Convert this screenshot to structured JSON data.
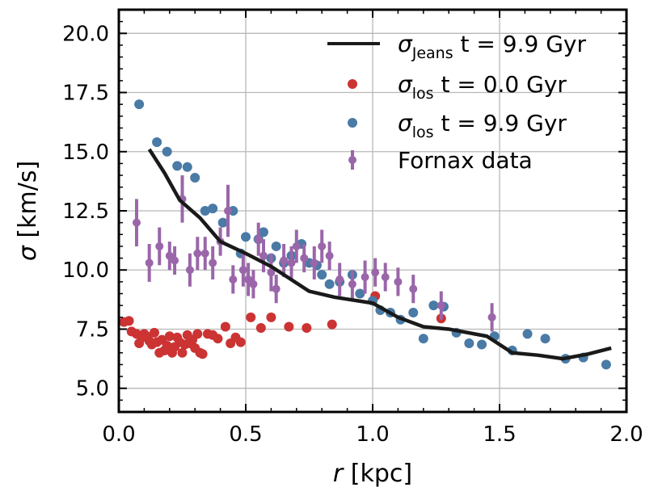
{
  "chart_data": {
    "type": "scatter",
    "xlabel_var": "r",
    "xlabel_unit": "[kpc]",
    "ylabel_var": "σ",
    "ylabel_unit": "[km/s]",
    "xlim": [
      0.0,
      2.0
    ],
    "ylim": [
      4.0,
      21.0
    ],
    "x_ticks": [
      0.0,
      0.5,
      1.0,
      1.5,
      2.0
    ],
    "x_tick_labels": [
      "0.0",
      "0.5",
      "1.0",
      "1.5",
      "2.0"
    ],
    "y_ticks": [
      5.0,
      7.5,
      10.0,
      12.5,
      15.0,
      17.5,
      20.0
    ],
    "y_tick_labels": [
      "5.0",
      "7.5",
      "10.0",
      "12.5",
      "15.0",
      "17.5",
      "20.0"
    ],
    "grid": true,
    "legend_position": "top-right",
    "colors": {
      "line": "#1a1a1a",
      "red": "#cc3333",
      "blue": "#4a7aa6",
      "purple": "#9a66a9"
    },
    "series": [
      {
        "name": "σ_Jeans t = 9.9 Gyr",
        "legend_sym": "σ",
        "legend_sub": "Jeans",
        "legend_rest": " t = 9.9 Gyr",
        "kind": "line",
        "color": "#1a1a1a",
        "x": [
          0.12,
          0.18,
          0.24,
          0.32,
          0.4,
          0.5,
          0.6,
          0.75,
          0.85,
          1.0,
          1.1,
          1.2,
          1.3,
          1.45,
          1.55,
          1.65,
          1.75,
          1.85,
          1.94
        ],
        "y": [
          15.1,
          14.1,
          12.95,
          12.2,
          11.2,
          10.7,
          10.15,
          9.1,
          8.85,
          8.6,
          8.0,
          7.6,
          7.5,
          7.2,
          6.5,
          6.4,
          6.25,
          6.45,
          6.7
        ]
      },
      {
        "name": "σ_los t = 0.0 Gyr",
        "legend_sym": "σ",
        "legend_sub": "los",
        "legend_rest": " t = 0.0 Gyr",
        "kind": "scatter",
        "color": "#cc3333",
        "x": [
          0.02,
          0.04,
          0.05,
          0.07,
          0.08,
          0.09,
          0.1,
          0.11,
          0.12,
          0.13,
          0.14,
          0.15,
          0.16,
          0.17,
          0.18,
          0.19,
          0.2,
          0.21,
          0.22,
          0.23,
          0.24,
          0.25,
          0.26,
          0.27,
          0.28,
          0.29,
          0.3,
          0.31,
          0.32,
          0.33,
          0.35,
          0.37,
          0.39,
          0.42,
          0.44,
          0.46,
          0.48,
          0.52,
          0.56,
          0.6,
          0.67,
          0.74,
          0.84,
          1.01,
          1.27
        ],
        "y": [
          7.8,
          7.85,
          7.4,
          7.3,
          6.9,
          7.15,
          7.3,
          7.2,
          7.0,
          6.85,
          7.35,
          6.95,
          6.5,
          7.05,
          6.6,
          6.8,
          7.2,
          6.5,
          6.75,
          7.15,
          6.95,
          6.5,
          6.85,
          7.25,
          6.9,
          7.05,
          6.7,
          7.3,
          6.5,
          6.45,
          7.3,
          7.25,
          7.1,
          7.6,
          6.9,
          7.15,
          6.95,
          8.0,
          7.55,
          8.0,
          7.6,
          7.55,
          7.7,
          8.9,
          7.95
        ]
      },
      {
        "name": "σ_los t = 9.9 Gyr",
        "legend_sym": "σ",
        "legend_sub": "los",
        "legend_rest": " t = 9.9 Gyr",
        "kind": "scatter",
        "color": "#4a7aa6",
        "x": [
          0.08,
          0.15,
          0.19,
          0.23,
          0.27,
          0.3,
          0.34,
          0.37,
          0.41,
          0.45,
          0.48,
          0.5,
          0.55,
          0.57,
          0.6,
          0.62,
          0.65,
          0.68,
          0.72,
          0.75,
          0.78,
          0.8,
          0.83,
          0.87,
          0.92,
          0.95,
          1.0,
          1.03,
          1.07,
          1.11,
          1.16,
          1.2,
          1.24,
          1.28,
          1.33,
          1.38,
          1.43,
          1.48,
          1.55,
          1.61,
          1.68,
          1.76,
          1.83,
          1.92
        ],
        "y": [
          17.0,
          15.4,
          15.0,
          14.4,
          14.35,
          13.9,
          12.5,
          12.6,
          12.0,
          12.5,
          10.7,
          11.4,
          11.3,
          11.6,
          10.5,
          11.0,
          10.3,
          10.6,
          11.1,
          10.3,
          10.2,
          9.8,
          9.4,
          9.5,
          9.8,
          9.0,
          8.7,
          8.3,
          8.2,
          7.9,
          8.2,
          7.1,
          8.5,
          8.45,
          7.35,
          6.9,
          6.85,
          7.2,
          6.6,
          7.3,
          7.1,
          6.25,
          6.3,
          6.0
        ]
      },
      {
        "name": "Fornax data",
        "legend_label": "Fornax data",
        "kind": "errorbar",
        "color": "#9a66a9",
        "x": [
          0.07,
          0.12,
          0.16,
          0.2,
          0.22,
          0.25,
          0.28,
          0.31,
          0.34,
          0.37,
          0.4,
          0.43,
          0.45,
          0.49,
          0.51,
          0.53,
          0.55,
          0.57,
          0.6,
          0.62,
          0.65,
          0.68,
          0.7,
          0.73,
          0.77,
          0.8,
          0.83,
          0.87,
          0.92,
          0.97,
          1.01,
          1.05,
          1.1,
          1.16,
          1.27,
          1.47
        ],
        "y": [
          12.0,
          10.3,
          11.0,
          10.6,
          10.4,
          13.0,
          10.0,
          10.7,
          10.7,
          10.3,
          11.2,
          12.5,
          9.6,
          10.0,
          9.6,
          9.4,
          11.3,
          10.6,
          9.9,
          9.2,
          10.4,
          10.3,
          11.0,
          10.5,
          10.3,
          11.0,
          10.6,
          9.6,
          9.4,
          9.7,
          9.9,
          9.7,
          9.5,
          9.2,
          8.5,
          8.0
        ],
        "err": [
          1.0,
          0.8,
          0.8,
          0.6,
          0.6,
          1.0,
          0.7,
          0.7,
          0.7,
          0.7,
          0.6,
          1.1,
          0.6,
          0.7,
          0.7,
          0.6,
          0.7,
          0.7,
          0.8,
          0.6,
          0.7,
          0.7,
          0.7,
          0.6,
          0.7,
          0.7,
          0.6,
          0.7,
          0.6,
          0.7,
          0.6,
          0.6,
          0.6,
          0.6,
          0.6,
          0.6
        ]
      }
    ]
  }
}
